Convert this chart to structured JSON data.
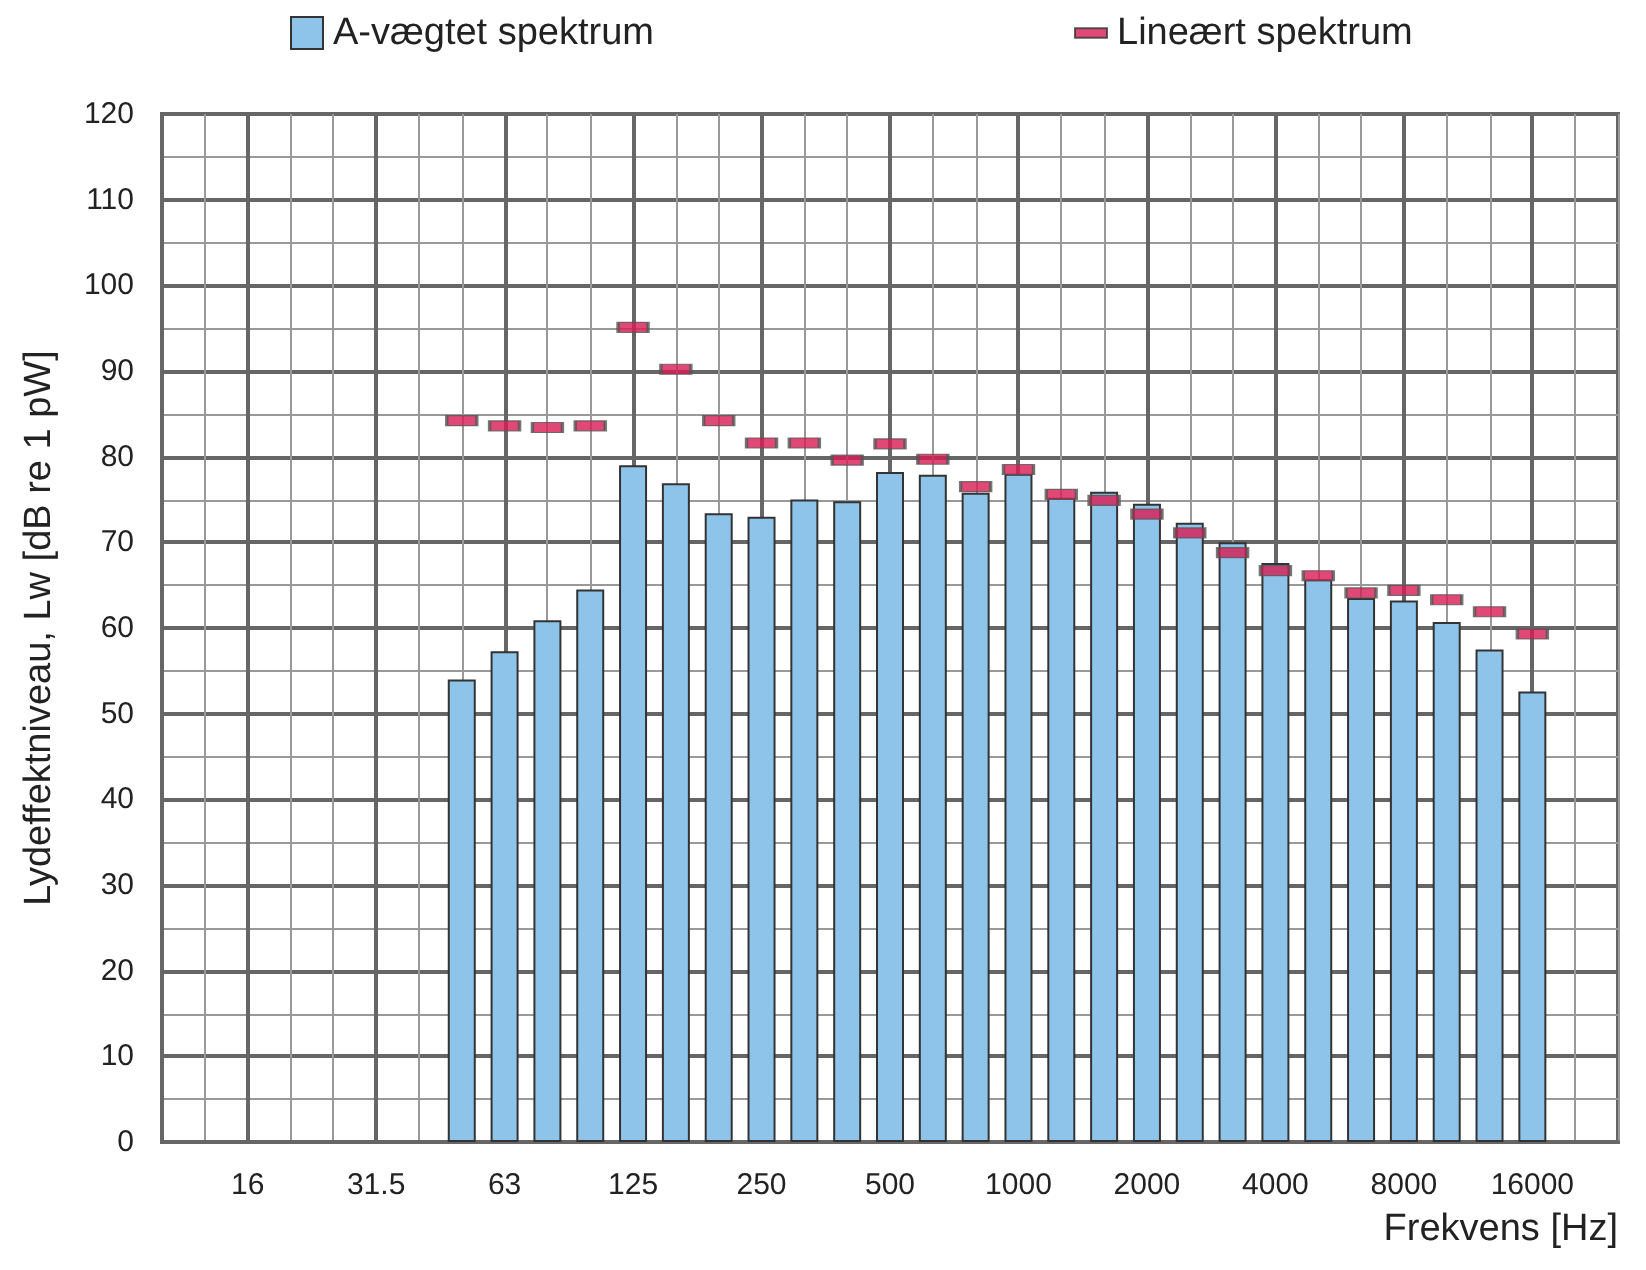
{
  "chart_data": {
    "type": "bar",
    "xlabel": "Frekvens [Hz]",
    "ylabel": "Lydeffektniveau, Lw [dB re 1 pW]",
    "categories": [
      null,
      null,
      "16",
      null,
      null,
      "31.5",
      null,
      null,
      "63",
      null,
      null,
      "125",
      null,
      null,
      "250",
      null,
      null,
      "500",
      null,
      null,
      "1000",
      null,
      null,
      "2000",
      null,
      null,
      "4000",
      null,
      null,
      "8000",
      null,
      null,
      "16000",
      null,
      null
    ],
    "series": [
      {
        "name": "A-vægtet spektrum",
        "color": "#8ec4ea",
        "values": [
          null,
          null,
          null,
          null,
          null,
          null,
          null,
          54.0,
          57.3,
          60.9,
          64.5,
          79.0,
          76.9,
          73.4,
          73.0,
          75.0,
          74.8,
          78.2,
          77.9,
          75.8,
          78.0,
          75.2,
          75.9,
          74.5,
          72.3,
          70.0,
          67.6,
          65.7,
          63.5,
          63.2,
          60.7,
          57.5,
          52.6,
          null,
          null
        ]
      },
      {
        "name": "Lineært spektrum",
        "type": "scatter",
        "marker": "square",
        "color": "#d81b52",
        "values": [
          null,
          null,
          null,
          null,
          null,
          null,
          null,
          84.2,
          83.6,
          83.4,
          83.6,
          95.1,
          90.2,
          84.2,
          81.6,
          81.6,
          79.6,
          81.5,
          79.7,
          76.5,
          78.5,
          75.6,
          74.9,
          73.3,
          71.1,
          68.8,
          66.7,
          66.1,
          64.1,
          64.4,
          63.3,
          61.9,
          59.3,
          null,
          null
        ]
      }
    ],
    "ylim": [
      0,
      120
    ],
    "yticks": [
      0,
      10,
      20,
      30,
      40,
      50,
      60,
      70,
      80,
      90,
      100,
      110,
      120
    ],
    "grid": true,
    "legend": "top"
  }
}
